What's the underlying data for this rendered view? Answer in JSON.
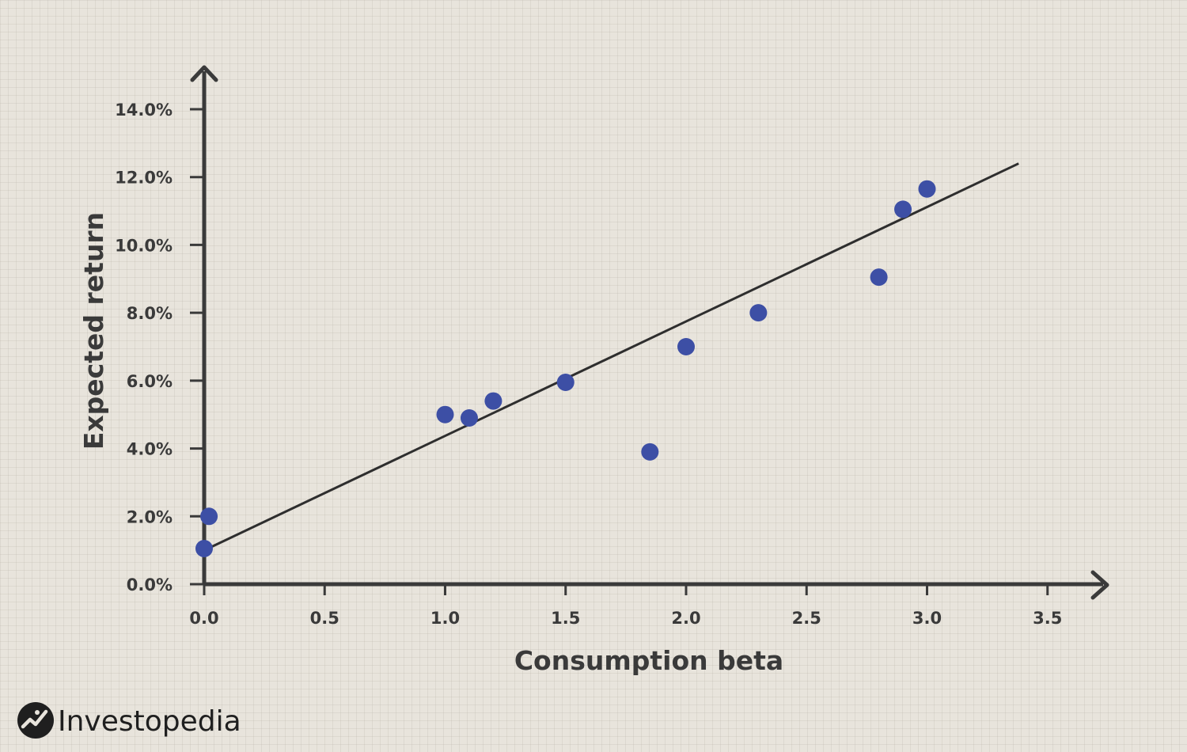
{
  "chart_data": {
    "type": "scatter",
    "xlabel": "Consumption beta",
    "ylabel": "Expected return",
    "xlim": [
      0,
      3.5
    ],
    "ylim": [
      0,
      14
    ],
    "x_ticks": [
      "0.0",
      "0.5",
      "1.0",
      "1.5",
      "2.0",
      "2.5",
      "3.0",
      "3.5"
    ],
    "y_ticks": [
      "0.0%",
      "2.0%",
      "4.0%",
      "6.0%",
      "8.0%",
      "10.0%",
      "12.0%",
      "14.0%"
    ],
    "points": [
      {
        "x": 0.0,
        "y": 1.05
      },
      {
        "x": 0.02,
        "y": 2.0
      },
      {
        "x": 1.0,
        "y": 5.0
      },
      {
        "x": 1.1,
        "y": 4.9
      },
      {
        "x": 1.2,
        "y": 5.4
      },
      {
        "x": 1.5,
        "y": 5.95
      },
      {
        "x": 1.85,
        "y": 3.9
      },
      {
        "x": 2.0,
        "y": 7.0
      },
      {
        "x": 2.3,
        "y": 8.0
      },
      {
        "x": 2.8,
        "y": 9.05
      },
      {
        "x": 2.9,
        "y": 11.05
      },
      {
        "x": 3.0,
        "y": 11.65
      }
    ],
    "trendline": {
      "x": [
        0.03,
        3.38
      ],
      "y": [
        1.1,
        12.4
      ]
    },
    "grid": false,
    "colors": {
      "points": "#3d4fa5",
      "axes": "#3a3a3a",
      "trendline": "#2e2e2e"
    }
  },
  "branding": {
    "name": "Investopedia",
    "logo_icon": "investopedia-logo-icon"
  }
}
